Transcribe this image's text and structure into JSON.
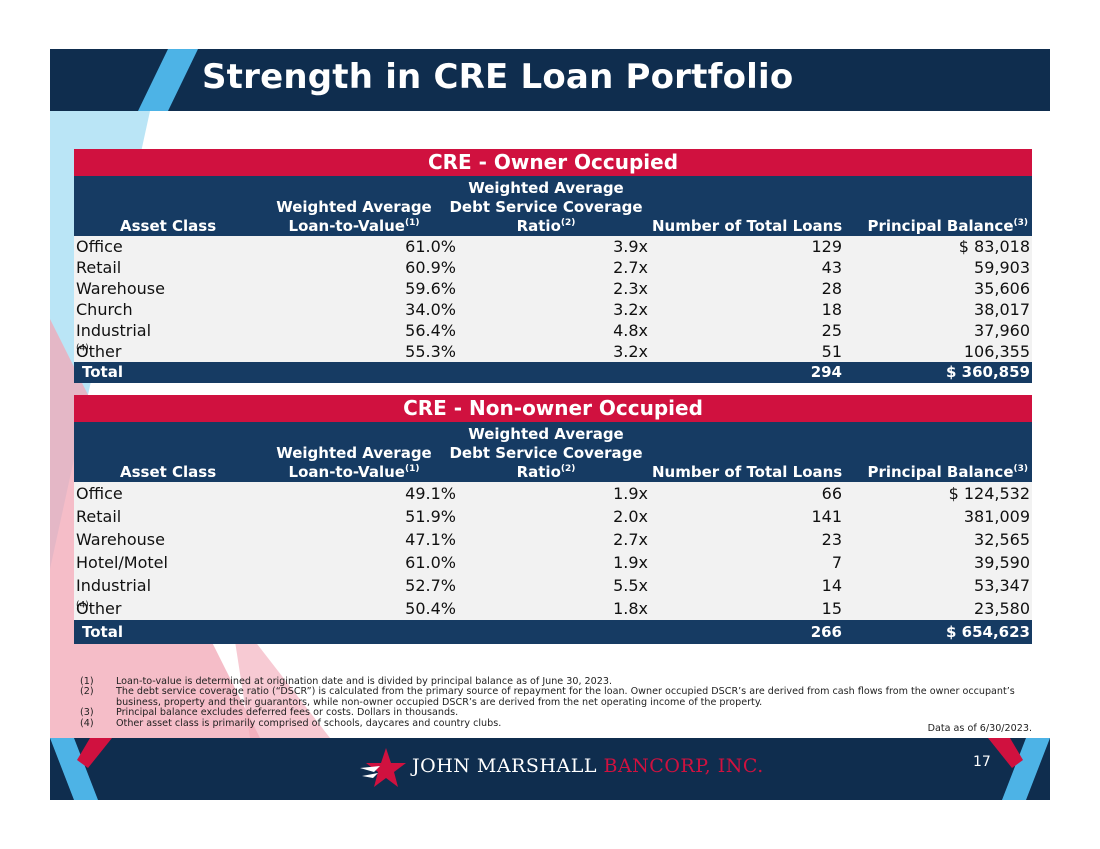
{
  "title": "Strength in CRE Loan Portfolio",
  "tables": [
    {
      "section_title": "CRE - Owner Occupied",
      "headers": {
        "asset_class": "Asset Class",
        "ltv_line1": "Weighted Average",
        "ltv_line2": "Loan-to-Value",
        "ltv_note": "(1)",
        "dscr_line1": "Weighted Average",
        "dscr_line2": "Debt Service Coverage",
        "dscr_line3": "Ratio",
        "dscr_note": "(2)",
        "num_loans": "Number of Total Loans",
        "principal": "Principal Balance",
        "principal_note": "(3)"
      },
      "rows": [
        {
          "asset": "Office",
          "ltv": "61.0%",
          "dscr": "3.9x",
          "num": "129",
          "balance": "$ 83,018"
        },
        {
          "asset": "Retail",
          "ltv": "60.9%",
          "dscr": "2.7x",
          "num": "43",
          "balance": "59,903"
        },
        {
          "asset": "Warehouse",
          "ltv": "59.6%",
          "dscr": "2.3x",
          "num": "28",
          "balance": "35,606"
        },
        {
          "asset": "Church",
          "ltv": "34.0%",
          "dscr": "3.2x",
          "num": "18",
          "balance": "38,017"
        },
        {
          "asset": "Industrial",
          "ltv": "56.4%",
          "dscr": "4.8x",
          "num": "25",
          "balance": "37,960"
        },
        {
          "asset": "Other",
          "asset_note": "(4)",
          "ltv": "55.3%",
          "dscr": "3.2x",
          "num": "51",
          "balance": "106,355"
        }
      ],
      "total": {
        "label": "Total",
        "num": "294",
        "balance": "$ 360,859"
      }
    },
    {
      "section_title": "CRE - Non-owner Occupied",
      "headers": {
        "asset_class": "Asset Class",
        "ltv_line1": "Weighted Average",
        "ltv_line2": "Loan-to-Value",
        "ltv_note": "(1)",
        "dscr_line1": "Weighted Average",
        "dscr_line2": "Debt Service Coverage",
        "dscr_line3": "Ratio",
        "dscr_note": "(2)",
        "num_loans": "Number of Total Loans",
        "principal": "Principal Balance",
        "principal_note": "(3)"
      },
      "rows": [
        {
          "asset": "Office",
          "ltv": "49.1%",
          "dscr": "1.9x",
          "num": "66",
          "balance": "$ 124,532"
        },
        {
          "asset": "Retail",
          "ltv": "51.9%",
          "dscr": "2.0x",
          "num": "141",
          "balance": "381,009"
        },
        {
          "asset": "Warehouse",
          "ltv": "47.1%",
          "dscr": "2.7x",
          "num": "23",
          "balance": "32,565"
        },
        {
          "asset": "Hotel/Motel",
          "ltv": "61.0%",
          "dscr": "1.9x",
          "num": "7",
          "balance": "39,590"
        },
        {
          "asset": "Industrial",
          "ltv": "52.7%",
          "dscr": "5.5x",
          "num": "14",
          "balance": "53,347"
        },
        {
          "asset": "Other",
          "asset_note": "(4)",
          "ltv": "50.4%",
          "dscr": "1.8x",
          "num": "15",
          "balance": "23,580"
        }
      ],
      "total": {
        "label": "Total",
        "num": "266",
        "balance": "$ 654,623"
      }
    }
  ],
  "footnotes": [
    {
      "num": "(1)",
      "text": "Loan-to-value is determined at origination date and is divided by principal balance as of June 30, 2023."
    },
    {
      "num": "(2)",
      "text": "The debt service coverage ratio (“DSCR”) is calculated from the primary source of repayment for the loan. Owner occupied DSCR’s are derived from cash flows from the owner occupant’s business, property and their guarantors, while non-owner occupied DSCR’s are derived from the net operating income of the property."
    },
    {
      "num": "(3)",
      "text": "Principal balance excludes deferred fees or costs. Dollars in thousands."
    },
    {
      "num": "(4)",
      "text": "Other asset class is primarily comprised of schools, daycares and country clubs."
    }
  ],
  "as_of": "Data as of 6/30/2023.",
  "footer": {
    "logo_name": "JOHN MARSHALL",
    "logo_bancorp": "BANCORP, INC.",
    "page_number": "17",
    "logo_icon": "star-icon"
  },
  "colors": {
    "navy": "#0f2d4e",
    "header_navy": "#163b63",
    "crimson": "#d0113f",
    "light_blue": "#4db3e6",
    "pink": "#e88aa0"
  }
}
